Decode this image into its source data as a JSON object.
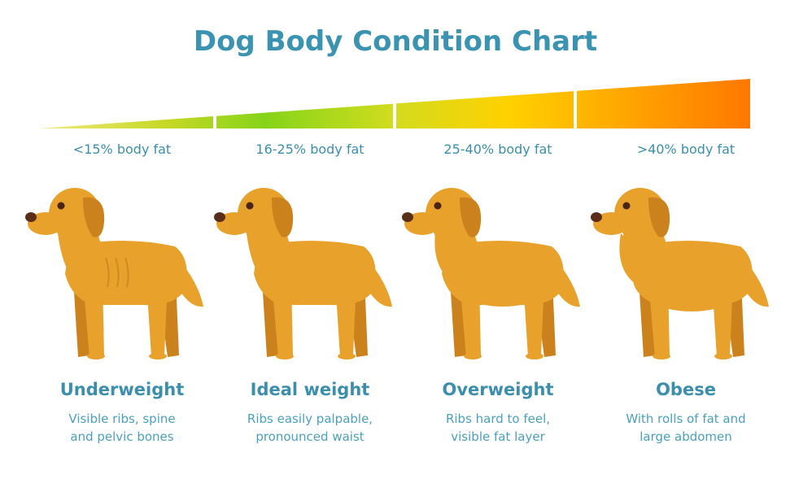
{
  "title": "Dog Body Condition Chart",
  "columns": [
    {
      "fat": "<15% body fat",
      "name": "Underweight",
      "description": [
        "Visible ribs, spine",
        "and pelvic bones"
      ]
    },
    {
      "fat": "16-25% body fat",
      "name": "Ideal weight",
      "description": [
        "Ribs easily palpable,",
        "pronounced waist"
      ]
    },
    {
      "fat": "25-40% body fat",
      "name": "Overweight",
      "description": [
        "Ribs hard to feel,",
        "visible fat layer"
      ]
    },
    {
      "fat": ">40% body fat",
      "name": "Obese",
      "description": [
        "With rolls of fat and",
        "large abdomen"
      ]
    }
  ]
}
